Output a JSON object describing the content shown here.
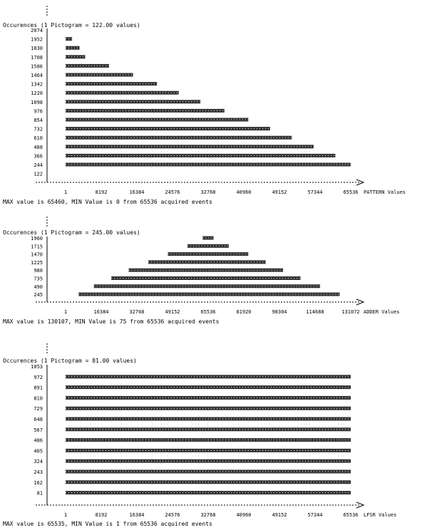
{
  "chart_data": [
    {
      "type": "bar",
      "header": "Occurences (1 Pictogram = 122.00 values)",
      "xlabel": "PATTERN Values",
      "footer": "MAX value is 65460, MIN Value is 0 from 65536 acquired events",
      "yticks": [
        "2074",
        "1952",
        "1830",
        "1708",
        "1586",
        "1464",
        "1342",
        "1220",
        "1098",
        "976",
        "854",
        "732",
        "610",
        "488",
        "366",
        "244",
        "122"
      ],
      "xticks": [
        "1",
        "8192",
        "16384",
        "24576",
        "32768",
        "40960",
        "49152",
        "57344",
        "65536"
      ],
      "xlim": [
        0,
        65536
      ],
      "bar_start": 0,
      "bar_ends": [
        4500,
        10000,
        15500,
        21000,
        26000,
        31000,
        36500,
        42000,
        47000,
        52000,
        57000,
        62000,
        65500
      ],
      "ends_from_row": 3
    },
    {
      "type": "bar",
      "header": "Occurences (1 Pictogram = 245.00 values)",
      "xlabel": "ADDER Values",
      "footer": "MAX value is 130107, MIN Value is 75 from 65536 acquired events",
      "yticks": [
        "1960",
        "1715",
        "1470",
        "1225",
        "980",
        "735",
        "490",
        "245"
      ],
      "xticks": [
        "1",
        "16384",
        "32768",
        "49152",
        "65536",
        "81920",
        "98304",
        "114688",
        "131072"
      ],
      "xlim": [
        0,
        131072
      ],
      "rows": [
        {
          "start": 63000,
          "end": 68000
        },
        {
          "start": 56000,
          "end": 75000
        },
        {
          "start": 47000,
          "end": 84000
        },
        {
          "start": 38000,
          "end": 92000
        },
        {
          "start": 29000,
          "end": 100000
        },
        {
          "start": 21000,
          "end": 108000
        },
        {
          "start": 13000,
          "end": 117000
        },
        {
          "start": 6000,
          "end": 126000
        }
      ]
    },
    {
      "type": "bar",
      "header": "Occurences (1 Pictogram = 81.00 values)",
      "xlabel": "LFSR Values",
      "footer": "MAX value is 65535, MIN Value is 1 from 65536 acquired events",
      "yticks": [
        "1053",
        "972",
        "891",
        "810",
        "729",
        "648",
        "567",
        "486",
        "405",
        "324",
        "243",
        "162",
        "81"
      ],
      "xticks": [
        "1",
        "8192",
        "16384",
        "24576",
        "32768",
        "40960",
        "49152",
        "57344",
        "65536"
      ],
      "xlim": [
        0,
        65536
      ],
      "bar_start": 0,
      "bar_end": 65535,
      "ends_from_row": 1
    }
  ]
}
